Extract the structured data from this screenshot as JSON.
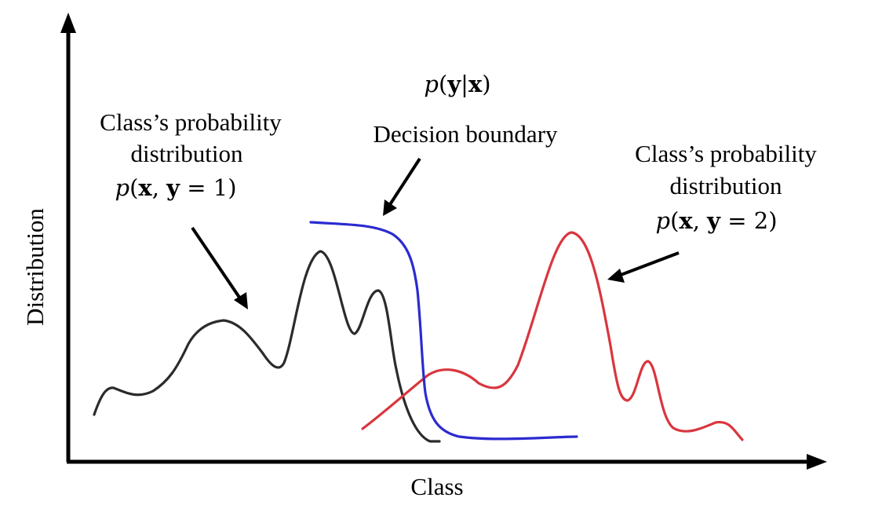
{
  "axes": {
    "y_label": "Distribution",
    "x_label": "Class"
  },
  "annotations": {
    "posterior": {
      "p": "p",
      "open": "(",
      "y": "y",
      "bar": "|",
      "x": "x",
      "close": ")"
    },
    "decision_boundary": "Decision boundary",
    "class1": {
      "line1": "Class’s probability",
      "line2": "distribution",
      "formula": {
        "p": "p",
        "open": "(",
        "x": "x",
        "comma": ", ",
        "y": "y",
        "eq": " = ",
        "num": "1",
        "close": ")"
      }
    },
    "class2": {
      "line1": "Class’s probability",
      "line2": "distribution",
      "formula": {
        "p": "p",
        "open": "(",
        "x": "x",
        "comma": ", ",
        "y": "y",
        "eq": " = ",
        "num": "2",
        "close": ")"
      }
    }
  },
  "colors": {
    "class1_curve": "#2b2b2b",
    "class2_curve": "#d9363e",
    "boundary_curve": "#2b2bd0",
    "axes": "#000000"
  }
}
